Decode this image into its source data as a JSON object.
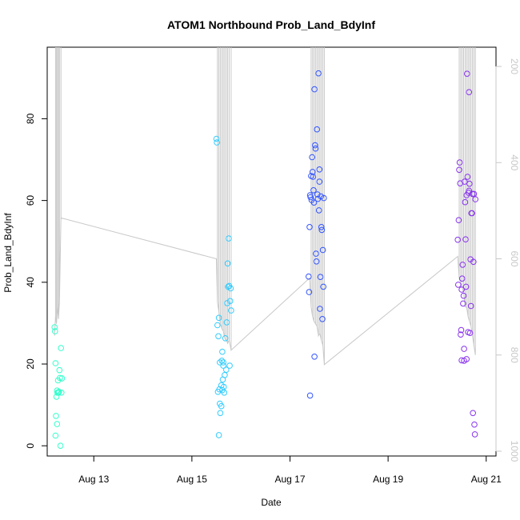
{
  "chart_data": {
    "type": "scatter",
    "title": "ATOM1 Northbound Prob_Land_BdyInf",
    "xlabel": "Date",
    "ylabel": "Prob_Land_BdyInf",
    "x_ticks": [
      "Aug 13",
      "Aug 15",
      "Aug 17",
      "Aug 19",
      "Aug 21"
    ],
    "x_tick_values": [
      13,
      15,
      17,
      19,
      21
    ],
    "xlim": [
      12.05,
      21.2
    ],
    "ylim": [
      -2.5,
      97.5
    ],
    "y_ticks": [
      0,
      20,
      40,
      60,
      80
    ],
    "y2_ticks": [
      200,
      400,
      600,
      800,
      1000
    ],
    "y2lim": [
      1010,
      160
    ],
    "colors": {
      "series": [
        "#33ffcc",
        "#33ccff",
        "#3355ff",
        "#8833ee"
      ],
      "line": "#c8c8c8",
      "axis": "#000000",
      "y2axis": "#c8c8c8"
    },
    "series": [
      {
        "x": [
          12.2,
          12.21,
          12.22,
          12.24,
          12.25,
          12.26,
          12.27,
          12.28,
          12.29,
          12.3,
          12.31,
          12.32,
          12.33,
          12.35,
          12.22,
          12.23,
          12.25,
          12.26,
          12.34
        ],
        "y": [
          29,
          28,
          20.2,
          12,
          13.5,
          13,
          16,
          13,
          13.2,
          18.5,
          16.6,
          0,
          23.9,
          16.5,
          2.5,
          7.3,
          5.3,
          13,
          13
        ]
      },
      {
        "x": [
          15.5,
          15.51,
          15.52,
          15.53,
          15.54,
          15.55,
          15.56,
          15.57,
          15.58,
          15.6,
          15.61,
          15.62,
          15.63,
          15.64,
          15.65,
          15.66,
          15.67,
          15.68,
          15.7,
          15.71,
          15.72,
          15.73,
          15.74,
          15.75,
          15.76,
          15.77,
          15.78,
          15.79,
          15.8,
          15.55,
          15.57,
          15.6,
          15.62,
          15.64
        ],
        "y": [
          75.1,
          74.2,
          29.5,
          13.2,
          26.8,
          31.3,
          13.8,
          20.4,
          8,
          14.8,
          20.8,
          23,
          16.2,
          20.4,
          14.4,
          13,
          17.3,
          26.3,
          18.6,
          30.2,
          34.9,
          44.6,
          38.9,
          50.7,
          39.1,
          19.6,
          35.4,
          38.5,
          33.1,
          2.6,
          10.3,
          9.7,
          13.6,
          19.6
        ]
      },
      {
        "x": [
          17.38,
          17.39,
          17.4,
          17.41,
          17.42,
          17.43,
          17.44,
          17.45,
          17.46,
          17.47,
          17.48,
          17.49,
          17.5,
          17.51,
          17.52,
          17.53,
          17.54,
          17.55,
          17.56,
          17.57,
          17.58,
          17.59,
          17.6,
          17.61,
          17.62,
          17.63,
          17.64,
          17.65,
          17.66,
          17.67,
          17.68,
          17.69,
          17.41,
          17.5,
          17.6
        ],
        "y": [
          41.4,
          37.6,
          53.5,
          61.3,
          60.8,
          66,
          60.1,
          70.6,
          67,
          65.8,
          62.5,
          59.5,
          87.2,
          73.5,
          72.7,
          47,
          45.1,
          77.4,
          61.5,
          60.4,
          91.1,
          57.6,
          67.6,
          33.5,
          41.3,
          61,
          53.5,
          52.8,
          31,
          47.9,
          38.9,
          60.6,
          12.3,
          21.8,
          64.6
        ]
      },
      {
        "x": [
          20.42,
          20.43,
          20.44,
          20.45,
          20.46,
          20.47,
          20.48,
          20.49,
          20.5,
          20.51,
          20.52,
          20.53,
          20.54,
          20.55,
          20.56,
          20.57,
          20.58,
          20.59,
          20.6,
          20.61,
          20.62,
          20.63,
          20.64,
          20.65,
          20.66,
          20.67,
          20.68,
          20.69,
          20.7,
          20.71,
          20.72,
          20.73,
          20.74,
          20.75,
          20.76,
          20.77,
          20.78,
          20.5,
          20.55,
          20.6,
          20.65
        ],
        "y": [
          50.4,
          39.4,
          55.2,
          67.5,
          69.3,
          64.2,
          27.2,
          28.3,
          38.2,
          40.9,
          44.3,
          34.8,
          36.7,
          23.7,
          64.6,
          59.6,
          50.5,
          38.9,
          61.3,
          91,
          65.8,
          27.8,
          61.9,
          86.5,
          64.1,
          27.6,
          45.6,
          34.2,
          56.9,
          56.9,
          61.6,
          8,
          45,
          61.6,
          5.2,
          2.8,
          60.3,
          20.9,
          20.8,
          21.2,
          62.4
        ]
      }
    ],
    "line_series": {
      "x": [
        12.2,
        12.22,
        12.24,
        12.26,
        12.28,
        12.3,
        12.33,
        15.5,
        15.52,
        15.55,
        15.58,
        15.61,
        15.64,
        15.67,
        15.7,
        15.73,
        15.76,
        15.8,
        17.4,
        17.43,
        17.46,
        17.49,
        17.52,
        17.55,
        17.58,
        17.61,
        17.64,
        17.67,
        17.7,
        20.42,
        20.45,
        20.48,
        20.51,
        20.54,
        20.57,
        20.6,
        20.63,
        20.66,
        20.69,
        20.72,
        20.75,
        20.78
      ],
      "y": [
        760,
        720,
        735,
        700,
        725,
        690,
        515,
        600,
        690,
        710,
        735,
        745,
        750,
        765,
        770,
        775,
        770,
        790,
        640,
        700,
        720,
        730,
        735,
        740,
        760,
        755,
        770,
        780,
        820,
        595,
        640,
        650,
        660,
        670,
        700,
        700,
        720,
        730,
        740,
        760,
        780,
        800
      ]
    }
  }
}
